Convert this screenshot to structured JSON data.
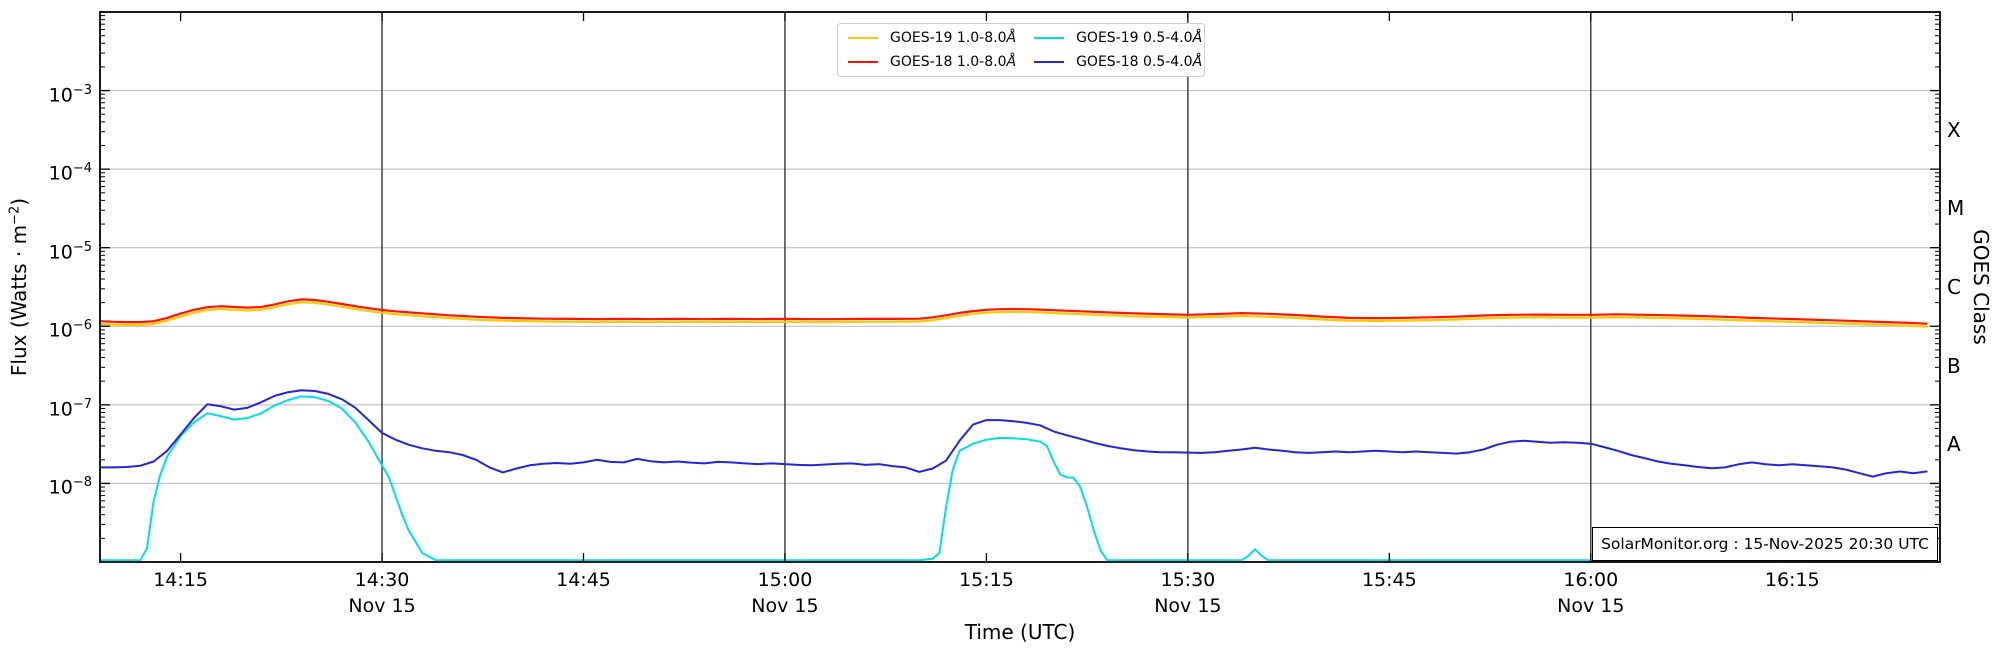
{
  "watermark": "SolarMonitor.org : 15-Nov-2025 20:30 UTC",
  "chart_data": {
    "type": "line",
    "title": "",
    "xlabel": "Time (UTC)",
    "ylabel_prefix": "Flux (Watts · m",
    "ylabel_sup": "−2",
    "ylabel_suffix": ")",
    "right_axis_label": "GOES Class",
    "grid": "horizontal decades light gray, vertical half-hour dark lines",
    "legend_position": "upper center",
    "x_domain": {
      "min": 9,
      "max": 146,
      "unit": "minutes after 14:00 UTC"
    },
    "y_domain": {
      "top_exp": -2,
      "bottom_exp": -9,
      "scale": "log10, Watts/m^2"
    },
    "x_ticks": [
      {
        "t": 15,
        "label": "14:15"
      },
      {
        "t": 30,
        "label": "14:30",
        "date": "Nov 15"
      },
      {
        "t": 45,
        "label": "14:45"
      },
      {
        "t": 60,
        "label": "15:00",
        "date": "Nov 15"
      },
      {
        "t": 75,
        "label": "15:15"
      },
      {
        "t": 90,
        "label": "15:30",
        "date": "Nov 15"
      },
      {
        "t": 105,
        "label": "15:45"
      },
      {
        "t": 120,
        "label": "16:00",
        "date": "Nov 15"
      },
      {
        "t": 135,
        "label": "16:15"
      }
    ],
    "x_gridlines_t": [
      30,
      60,
      90,
      120
    ],
    "y_gridline_exponents": [
      -3,
      -4,
      -5,
      -6,
      -7,
      -8
    ],
    "goes_classes": [
      {
        "letter": "X",
        "center_exp": -3.5
      },
      {
        "letter": "M",
        "center_exp": -4.5
      },
      {
        "letter": "C",
        "center_exp": -5.5
      },
      {
        "letter": "B",
        "center_exp": -6.5
      },
      {
        "letter": "A",
        "center_exp": -7.5
      }
    ],
    "colors": {
      "goes19_long": "#ffc800",
      "goes18_long": "#ff1400",
      "goes19_short": "#00e0e0",
      "goes18_short": "#2424dc",
      "grid": "#b8b8b8",
      "vline": "#262626",
      "spine": "#000000"
    },
    "legend": [
      {
        "label": "GOES-19 1.0-8.0",
        "unit": "Å",
        "color_key": "goes19_long"
      },
      {
        "label": "GOES-18 1.0-8.0",
        "unit": "Å",
        "color_key": "goes18_long"
      },
      {
        "label": "GOES-19 0.5-4.0",
        "unit": "Å",
        "color_key": "goes19_short"
      },
      {
        "label": "GOES-18 0.5-4.0",
        "unit": "Å",
        "color_key": "goes18_short"
      }
    ],
    "series": [
      {
        "id": "goes19-long",
        "name": "GOES-19 1.0-8.0Å",
        "color_key": "goes19_long",
        "width": 2.2,
        "scale": 1e-06,
        "t": [
          9,
          10,
          11,
          12,
          13,
          14,
          15,
          16,
          17,
          18,
          19,
          20,
          21,
          22,
          23,
          24,
          25,
          26,
          27,
          28,
          29,
          30,
          31,
          32,
          33,
          34,
          35,
          36,
          37,
          38,
          39,
          40,
          42,
          44,
          46,
          48,
          50,
          52,
          54,
          56,
          58,
          60,
          62,
          64,
          66,
          68,
          70,
          71,
          72,
          73,
          74,
          75,
          76,
          77,
          78,
          79,
          80,
          82,
          84,
          86,
          88,
          90,
          92,
          94,
          96,
          98,
          100,
          102,
          104,
          106,
          108,
          110,
          112,
          114,
          116,
          118,
          120,
          122,
          124,
          126,
          128,
          130,
          132,
          134,
          136,
          138,
          140,
          142,
          144,
          145
        ],
        "v": [
          1.07,
          1.05,
          1.04,
          1.04,
          1.07,
          1.18,
          1.33,
          1.49,
          1.61,
          1.66,
          1.62,
          1.59,
          1.62,
          1.75,
          1.91,
          2.02,
          1.99,
          1.89,
          1.77,
          1.66,
          1.56,
          1.48,
          1.43,
          1.38,
          1.34,
          1.31,
          1.27,
          1.24,
          1.21,
          1.2,
          1.18,
          1.17,
          1.15,
          1.14,
          1.13,
          1.14,
          1.13,
          1.14,
          1.13,
          1.14,
          1.13,
          1.14,
          1.13,
          1.13,
          1.14,
          1.14,
          1.15,
          1.2,
          1.27,
          1.36,
          1.44,
          1.49,
          1.52,
          1.53,
          1.52,
          1.5,
          1.47,
          1.43,
          1.38,
          1.34,
          1.32,
          1.29,
          1.32,
          1.35,
          1.32,
          1.28,
          1.22,
          1.18,
          1.17,
          1.18,
          1.2,
          1.22,
          1.26,
          1.29,
          1.3,
          1.29,
          1.29,
          1.31,
          1.29,
          1.27,
          1.24,
          1.21,
          1.18,
          1.15,
          1.12,
          1.09,
          1.07,
          1.04,
          1.01,
          0.99
        ]
      },
      {
        "id": "goes18-long",
        "name": "GOES-18 1.0-8.0Å",
        "color_key": "goes18_long",
        "width": 2.2,
        "scale": 1e-06,
        "t": [
          9,
          10,
          11,
          12,
          13,
          14,
          15,
          16,
          17,
          18,
          19,
          20,
          21,
          22,
          23,
          24,
          25,
          26,
          27,
          28,
          29,
          30,
          31,
          32,
          33,
          34,
          35,
          36,
          37,
          38,
          39,
          40,
          42,
          44,
          46,
          48,
          50,
          52,
          54,
          56,
          58,
          60,
          62,
          64,
          66,
          68,
          70,
          71,
          72,
          73,
          74,
          75,
          76,
          77,
          78,
          79,
          80,
          82,
          84,
          86,
          88,
          90,
          92,
          94,
          96,
          98,
          100,
          102,
          104,
          106,
          108,
          110,
          112,
          114,
          116,
          118,
          120,
          122,
          124,
          126,
          128,
          130,
          132,
          134,
          136,
          138,
          140,
          142,
          144,
          145
        ],
        "v": [
          1.16,
          1.14,
          1.13,
          1.13,
          1.16,
          1.28,
          1.45,
          1.62,
          1.75,
          1.8,
          1.76,
          1.73,
          1.76,
          1.9,
          2.08,
          2.2,
          2.16,
          2.05,
          1.92,
          1.8,
          1.7,
          1.61,
          1.55,
          1.5,
          1.46,
          1.42,
          1.38,
          1.35,
          1.32,
          1.3,
          1.28,
          1.27,
          1.25,
          1.24,
          1.23,
          1.24,
          1.23,
          1.24,
          1.23,
          1.24,
          1.23,
          1.24,
          1.23,
          1.23,
          1.24,
          1.24,
          1.25,
          1.3,
          1.38,
          1.48,
          1.56,
          1.62,
          1.65,
          1.66,
          1.65,
          1.63,
          1.6,
          1.55,
          1.5,
          1.46,
          1.43,
          1.4,
          1.43,
          1.47,
          1.44,
          1.39,
          1.33,
          1.28,
          1.27,
          1.28,
          1.3,
          1.33,
          1.37,
          1.4,
          1.41,
          1.4,
          1.4,
          1.42,
          1.4,
          1.38,
          1.35,
          1.32,
          1.28,
          1.25,
          1.22,
          1.19,
          1.16,
          1.13,
          1.1,
          1.08
        ]
      },
      {
        "id": "goes19-short",
        "name": "GOES-19 0.5-4.0Å",
        "color_key": "goes19_short",
        "width": 2.0,
        "scale": 1e-09,
        "t": [
          9,
          11,
          12,
          12.5,
          13,
          13.5,
          14,
          15,
          16,
          17,
          18,
          19,
          20,
          21,
          22,
          23,
          24,
          25,
          26,
          27,
          28,
          29,
          30,
          30.5,
          31,
          31.5,
          32,
          33,
          34,
          38,
          42,
          46,
          50,
          54,
          58,
          62,
          66,
          70,
          71,
          71.5,
          72,
          72.5,
          73,
          74,
          75,
          76,
          77,
          78,
          79,
          79.5,
          80,
          80.5,
          81,
          81.5,
          82,
          82.5,
          83,
          83.5,
          84,
          85,
          90,
          94,
          94.5,
          95,
          95.5,
          96,
          100,
          105,
          110,
          115,
          120,
          125,
          130,
          135,
          140,
          145
        ],
        "v": [
          1.05,
          1.05,
          1.05,
          1.5,
          6,
          13,
          22,
          40,
          60,
          78,
          72,
          65,
          68,
          78,
          98,
          115,
          128,
          125,
          112,
          90,
          60,
          34,
          17,
          12,
          7,
          4,
          2.5,
          1.3,
          1.05,
          1.05,
          1.05,
          1.05,
          1.05,
          1.05,
          1.05,
          1.05,
          1.05,
          1.05,
          1.1,
          1.3,
          5,
          15,
          26,
          32,
          36,
          38,
          37.5,
          36.5,
          34,
          30,
          19,
          13,
          12,
          11.8,
          9,
          5,
          2.5,
          1.4,
          1.05,
          1.05,
          1.05,
          1.05,
          1.2,
          1.45,
          1.2,
          1.05,
          1.05,
          1.05,
          1.05,
          1.05,
          1.05,
          1.05,
          1.05,
          1.05,
          1.05,
          1.05
        ]
      },
      {
        "id": "goes18-short",
        "name": "GOES-18 0.5-4.0Å",
        "color_key": "goes18_short",
        "width": 2.0,
        "scale": 1e-08,
        "t_start": 9,
        "t_step": 1,
        "v": [
          1.6,
          1.6,
          1.62,
          1.68,
          1.9,
          2.6,
          4.2,
          6.8,
          10.2,
          9.6,
          8.7,
          9.2,
          10.8,
          13.0,
          14.5,
          15.3,
          15.0,
          13.8,
          11.8,
          9.2,
          6.4,
          4.4,
          3.6,
          3.1,
          2.8,
          2.6,
          2.5,
          2.3,
          2.0,
          1.6,
          1.38,
          1.55,
          1.7,
          1.78,
          1.82,
          1.78,
          1.85,
          2.0,
          1.88,
          1.85,
          2.05,
          1.92,
          1.85,
          1.9,
          1.84,
          1.8,
          1.88,
          1.85,
          1.8,
          1.76,
          1.8,
          1.76,
          1.72,
          1.7,
          1.74,
          1.78,
          1.8,
          1.72,
          1.76,
          1.66,
          1.6,
          1.4,
          1.55,
          1.95,
          3.5,
          5.6,
          6.4,
          6.4,
          6.2,
          5.9,
          5.5,
          4.6,
          4.1,
          3.7,
          3.3,
          3.0,
          2.8,
          2.65,
          2.55,
          2.5,
          2.5,
          2.47,
          2.45,
          2.5,
          2.6,
          2.7,
          2.85,
          2.7,
          2.6,
          2.5,
          2.45,
          2.5,
          2.55,
          2.5,
          2.55,
          2.6,
          2.55,
          2.5,
          2.55,
          2.5,
          2.45,
          2.4,
          2.5,
          2.7,
          3.1,
          3.4,
          3.5,
          3.4,
          3.3,
          3.35,
          3.3,
          3.2,
          2.9,
          2.6,
          2.3,
          2.1,
          1.9,
          1.78,
          1.7,
          1.62,
          1.56,
          1.6,
          1.75,
          1.85,
          1.75,
          1.7,
          1.75,
          1.7,
          1.65,
          1.6,
          1.5,
          1.35,
          1.22,
          1.35,
          1.42,
          1.35,
          1.42
        ]
      }
    ]
  }
}
